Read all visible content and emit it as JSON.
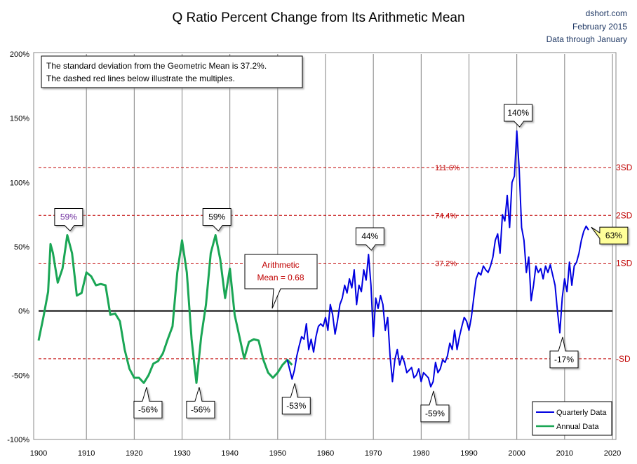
{
  "header": {
    "title": "Q Ratio Percent Change from Its Arithmetic Mean",
    "source": "dshort.com",
    "date": "February 2015",
    "note": "Data through January"
  },
  "infobox": {
    "line1": "The standard deviation from the Geometric Mean is 37.2%.",
    "line2": "The dashed red lines below illustrate the multiples."
  },
  "mean_callout": {
    "line1": "Arithmetic",
    "line2": "Mean = 0.68"
  },
  "legend": {
    "quarterly": "Quarterly Data",
    "annual": "Annual Data"
  },
  "colors": {
    "annual": "#1aa655",
    "quarterly": "#0000e0",
    "sd": "#c00000",
    "mean_text": "#c00000",
    "peak59": "#7030a0",
    "highlight": "#ffff99"
  },
  "chart_data": {
    "type": "line",
    "title": "Q Ratio Percent Change from Its Arithmetic Mean",
    "xlim": [
      1900,
      2020
    ],
    "ylim": [
      -100,
      200
    ],
    "x_ticks": [
      "1900",
      "1910",
      "1920",
      "1930",
      "1940",
      "1950",
      "1960",
      "1970",
      "1980",
      "1990",
      "2000",
      "2010",
      "2020"
    ],
    "y_ticks": [
      "200%",
      "150%",
      "100%",
      "50%",
      "0%",
      "-50%",
      "-100%"
    ],
    "y_tick_values": [
      200,
      150,
      100,
      50,
      0,
      -50,
      -100
    ],
    "sd_lines": [
      {
        "value": 111.6,
        "label": "111.6%",
        "right_label": "3SD"
      },
      {
        "value": 74.4,
        "label": "74.4%",
        "right_label": "2SD"
      },
      {
        "value": 37.2,
        "label": "37.2%",
        "right_label": "1SD"
      },
      {
        "value": -37.2,
        "label": "",
        "right_label": "-SD"
      }
    ],
    "series": [
      {
        "name": "Annual Data",
        "points": [
          [
            1900,
            -23
          ],
          [
            1901,
            -5
          ],
          [
            1902,
            15
          ],
          [
            1902.5,
            52
          ],
          [
            1903,
            45
          ],
          [
            1904,
            22
          ],
          [
            1905,
            33
          ],
          [
            1906,
            59
          ],
          [
            1907,
            45
          ],
          [
            1908,
            12
          ],
          [
            1909,
            14
          ],
          [
            1910,
            30
          ],
          [
            1911,
            27
          ],
          [
            1912,
            20
          ],
          [
            1913,
            21
          ],
          [
            1914,
            20
          ],
          [
            1915,
            -3
          ],
          [
            1916,
            -2
          ],
          [
            1917,
            -8
          ],
          [
            1918,
            -30
          ],
          [
            1919,
            -45
          ],
          [
            1920,
            -52
          ],
          [
            1921,
            -52
          ],
          [
            1922,
            -56
          ],
          [
            1923,
            -50
          ],
          [
            1924,
            -41
          ],
          [
            1925,
            -39
          ],
          [
            1926,
            -33
          ],
          [
            1927,
            -22
          ],
          [
            1928,
            -12
          ],
          [
            1929,
            30
          ],
          [
            1930,
            55
          ],
          [
            1931,
            30
          ],
          [
            1932,
            -22
          ],
          [
            1933,
            -56
          ],
          [
            1934,
            -20
          ],
          [
            1935,
            5
          ],
          [
            1936,
            45
          ],
          [
            1937,
            59
          ],
          [
            1938,
            40
          ],
          [
            1939,
            10
          ],
          [
            1940,
            33
          ],
          [
            1941,
            -3
          ],
          [
            1942,
            -20
          ],
          [
            1943,
            -37
          ],
          [
            1944,
            -24
          ],
          [
            1945,
            -22
          ],
          [
            1946,
            -23
          ],
          [
            1947,
            -38
          ],
          [
            1948,
            -48
          ],
          [
            1949,
            -52
          ],
          [
            1950,
            -48
          ],
          [
            1951,
            -42
          ],
          [
            1952,
            -38
          ],
          [
            1953,
            -42
          ]
        ]
      },
      {
        "name": "Quarterly Data",
        "points": [
          [
            1952,
            -38
          ],
          [
            1953,
            -53
          ],
          [
            1953.5,
            -46
          ],
          [
            1954,
            -35
          ],
          [
            1954.5,
            -27
          ],
          [
            1955,
            -20
          ],
          [
            1955.5,
            -22
          ],
          [
            1956,
            -10
          ],
          [
            1956.5,
            -30
          ],
          [
            1957,
            -22
          ],
          [
            1957.5,
            -32
          ],
          [
            1958,
            -20
          ],
          [
            1958.5,
            -12
          ],
          [
            1959,
            -10
          ],
          [
            1959.5,
            -12
          ],
          [
            1960,
            -5
          ],
          [
            1960.5,
            -15
          ],
          [
            1961,
            5
          ],
          [
            1961.5,
            -3
          ],
          [
            1962,
            -18
          ],
          [
            1962.5,
            -8
          ],
          [
            1963,
            5
          ],
          [
            1963.5,
            10
          ],
          [
            1964,
            20
          ],
          [
            1964.5,
            14
          ],
          [
            1965,
            25
          ],
          [
            1965.5,
            18
          ],
          [
            1966,
            32
          ],
          [
            1966.5,
            5
          ],
          [
            1967,
            20
          ],
          [
            1967.5,
            15
          ],
          [
            1968,
            32
          ],
          [
            1968.5,
            24
          ],
          [
            1969,
            44
          ],
          [
            1969.5,
            20
          ],
          [
            1970,
            -20
          ],
          [
            1970.5,
            10
          ],
          [
            1971,
            2
          ],
          [
            1971.5,
            12
          ],
          [
            1972,
            5
          ],
          [
            1972.5,
            -15
          ],
          [
            1973,
            -5
          ],
          [
            1973.5,
            -35
          ],
          [
            1974,
            -55
          ],
          [
            1974.5,
            -38
          ],
          [
            1975,
            -30
          ],
          [
            1975.5,
            -42
          ],
          [
            1976,
            -35
          ],
          [
            1976.5,
            -40
          ],
          [
            1977,
            -48
          ],
          [
            1978,
            -44
          ],
          [
            1978.5,
            -52
          ],
          [
            1979,
            -50
          ],
          [
            1979.5,
            -45
          ],
          [
            1980,
            -55
          ],
          [
            1980.5,
            -48
          ],
          [
            1981,
            -50
          ],
          [
            1981.5,
            -52
          ],
          [
            1982,
            -59
          ],
          [
            1982.5,
            -55
          ],
          [
            1983,
            -40
          ],
          [
            1983.5,
            -48
          ],
          [
            1984,
            -45
          ],
          [
            1984.5,
            -38
          ],
          [
            1985,
            -40
          ],
          [
            1985.5,
            -35
          ],
          [
            1986,
            -25
          ],
          [
            1986.5,
            -30
          ],
          [
            1987,
            -15
          ],
          [
            1987.5,
            -30
          ],
          [
            1988,
            -20
          ],
          [
            1988.5,
            -12
          ],
          [
            1989,
            -5
          ],
          [
            1989.5,
            -8
          ],
          [
            1990,
            -15
          ],
          [
            1990.5,
            -5
          ],
          [
            1991,
            10
          ],
          [
            1991.5,
            25
          ],
          [
            1992,
            30
          ],
          [
            1992.5,
            28
          ],
          [
            1993,
            35
          ],
          [
            1993.5,
            32
          ],
          [
            1994,
            30
          ],
          [
            1994.5,
            35
          ],
          [
            1995,
            42
          ],
          [
            1995.5,
            55
          ],
          [
            1996,
            60
          ],
          [
            1996.5,
            45
          ],
          [
            1997,
            75
          ],
          [
            1997.5,
            70
          ],
          [
            1998,
            90
          ],
          [
            1998.5,
            65
          ],
          [
            1999,
            100
          ],
          [
            1999.5,
            105
          ],
          [
            2000,
            140
          ],
          [
            2000.5,
            110
          ],
          [
            2001,
            65
          ],
          [
            2001.5,
            55
          ],
          [
            2002,
            30
          ],
          [
            2002.5,
            42
          ],
          [
            2003,
            8
          ],
          [
            2003.5,
            20
          ],
          [
            2004,
            35
          ],
          [
            2004.5,
            30
          ],
          [
            2005,
            33
          ],
          [
            2005.5,
            25
          ],
          [
            2006,
            35
          ],
          [
            2006.5,
            30
          ],
          [
            2007,
            36
          ],
          [
            2007.5,
            28
          ],
          [
            2008,
            20
          ],
          [
            2008.5,
            0
          ],
          [
            2009,
            -17
          ],
          [
            2009.5,
            10
          ],
          [
            2010,
            25
          ],
          [
            2010.5,
            15
          ],
          [
            2011,
            38
          ],
          [
            2011.5,
            20
          ],
          [
            2012,
            35
          ],
          [
            2012.5,
            38
          ],
          [
            2013,
            45
          ],
          [
            2013.5,
            55
          ],
          [
            2014,
            62
          ],
          [
            2014.5,
            66
          ],
          [
            2015,
            63
          ]
        ]
      }
    ],
    "annotations": [
      {
        "label": "59%",
        "x": 1906,
        "y": 59
      },
      {
        "label": "59%",
        "x": 1937,
        "y": 59
      },
      {
        "label": "-56%",
        "x": 1922,
        "y": -56
      },
      {
        "label": "-56%",
        "x": 1933,
        "y": -56
      },
      {
        "label": "-53%",
        "x": 1953,
        "y": -53
      },
      {
        "label": "44%",
        "x": 1969,
        "y": 44
      },
      {
        "label": "-59%",
        "x": 1982,
        "y": -59
      },
      {
        "label": "140%",
        "x": 2000,
        "y": 140
      },
      {
        "label": "-17%",
        "x": 2009,
        "y": -17
      },
      {
        "label": "63%",
        "x": 2015,
        "y": 63
      }
    ]
  }
}
